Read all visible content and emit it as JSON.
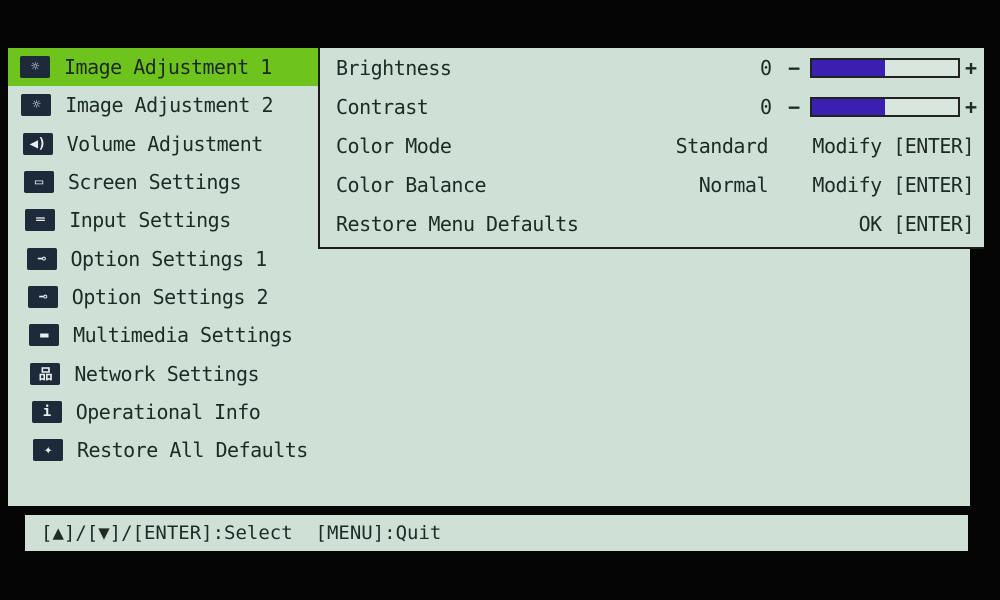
{
  "menu": {
    "items": [
      {
        "label": "Image Adjustment 1",
        "icon": "brightness-icon",
        "glyph": "☼",
        "selected": true
      },
      {
        "label": "Image Adjustment 2",
        "icon": "brightness-icon",
        "glyph": "☼"
      },
      {
        "label": "Volume Adjustment",
        "icon": "speaker-icon",
        "glyph": "◀)"
      },
      {
        "label": "Screen Settings",
        "icon": "screen-icon",
        "glyph": "▭"
      },
      {
        "label": "Input Settings",
        "icon": "input-plug-icon",
        "glyph": "═"
      },
      {
        "label": "Option Settings 1",
        "icon": "wrench-icon",
        "glyph": "⊸"
      },
      {
        "label": "Option Settings 2",
        "icon": "wrench-icon",
        "glyph": "⊸"
      },
      {
        "label": "Multimedia Settings",
        "icon": "folder-icon",
        "glyph": "▬"
      },
      {
        "label": "Network Settings",
        "icon": "network-icon",
        "glyph": "品"
      },
      {
        "label": "Operational Info",
        "icon": "info-icon",
        "glyph": "i"
      },
      {
        "label": "Restore All Defaults",
        "icon": "sparkle-icon",
        "glyph": "✦"
      }
    ]
  },
  "submenu": {
    "brightness": {
      "label": "Brightness",
      "value": "0",
      "minus": "−",
      "plus": "+",
      "level_percent": 50
    },
    "contrast": {
      "label": "Contrast",
      "value": "0",
      "minus": "−",
      "plus": "+",
      "level_percent": 50
    },
    "color_mode": {
      "label": "Color Mode",
      "value": "Standard",
      "action": "Modify [ENTER]"
    },
    "color_balance": {
      "label": "Color Balance",
      "value": "Normal",
      "action": "Modify [ENTER]"
    },
    "restore": {
      "label": "Restore Menu Defaults",
      "action": "OK [ENTER]"
    }
  },
  "footer": {
    "hint": "[▲]/[▼]/[ENTER]:Select  [MENU]:Quit"
  },
  "colors": {
    "selected": "#6ec41c",
    "background": "#cfe0d6",
    "bar_fill": "#3a1fb0"
  }
}
